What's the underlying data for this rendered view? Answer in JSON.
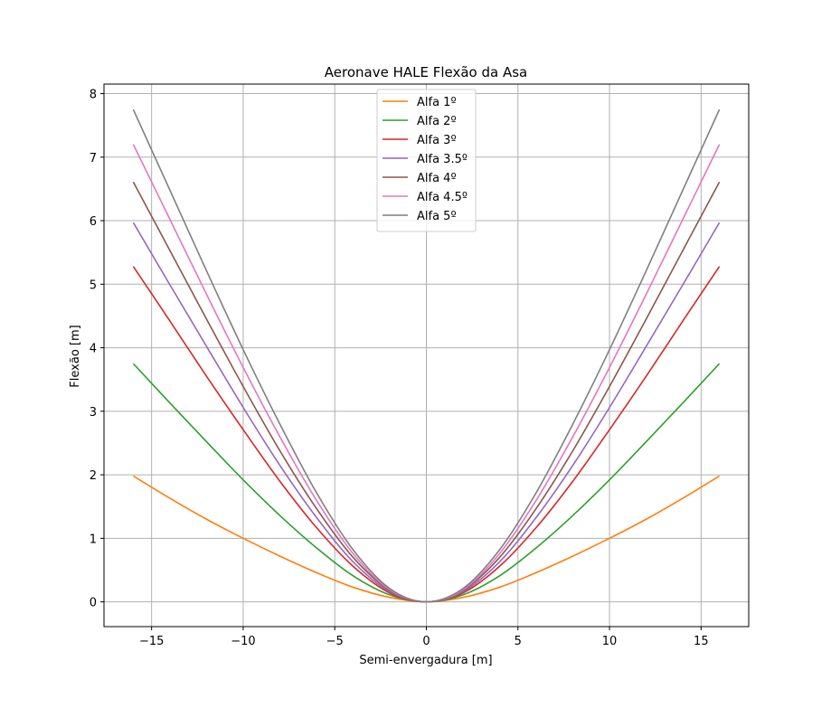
{
  "chart_data": {
    "type": "line",
    "title": "Aeronave HALE Flexão da Asa",
    "xlabel": "Semi-envergadura [m]",
    "ylabel": "Flexão [m]",
    "xlim": [
      -17.6,
      17.6
    ],
    "ylim": [
      -0.39,
      8.15
    ],
    "xticks": [
      -15,
      -10,
      -5,
      0,
      5,
      10,
      15
    ],
    "xtick_labels": [
      "−15",
      "−10",
      "−5",
      "0",
      "5",
      "10",
      "15"
    ],
    "yticks": [
      0,
      1,
      2,
      3,
      4,
      5,
      6,
      7,
      8
    ],
    "ytick_labels": [
      "0",
      "1",
      "2",
      "3",
      "4",
      "5",
      "6",
      "7",
      "8"
    ],
    "grid": true,
    "legend_position": "top-center",
    "x": [
      -16,
      -14,
      -12,
      -10,
      -8,
      -6,
      -4,
      -2,
      0,
      2,
      4,
      6,
      8,
      10,
      12,
      14,
      16
    ],
    "series": [
      {
        "name": "Alfa 1º",
        "color": "#ff7f0e",
        "values": [
          1.98,
          1.63,
          1.3,
          1.0,
          0.72,
          0.46,
          0.23,
          0.07,
          0,
          0.07,
          0.23,
          0.46,
          0.72,
          1.0,
          1.3,
          1.63,
          1.98
        ]
      },
      {
        "name": "Alfa 2º",
        "color": "#2ca02c",
        "values": [
          3.75,
          3.13,
          2.52,
          1.92,
          1.36,
          0.85,
          0.41,
          0.11,
          0,
          0.11,
          0.41,
          0.85,
          1.36,
          1.92,
          2.52,
          3.13,
          3.75
        ]
      },
      {
        "name": "Alfa 3º",
        "color": "#d62728",
        "values": [
          5.28,
          4.42,
          3.55,
          2.71,
          1.9,
          1.17,
          0.56,
          0.14,
          0,
          0.14,
          0.56,
          1.17,
          1.9,
          2.71,
          3.55,
          4.42,
          5.28
        ]
      },
      {
        "name": "Alfa 3.5º",
        "color": "#9467bd",
        "values": [
          5.97,
          4.99,
          4.02,
          3.06,
          2.15,
          1.33,
          0.63,
          0.16,
          0,
          0.16,
          0.63,
          1.33,
          2.15,
          3.06,
          4.02,
          4.99,
          5.97
        ]
      },
      {
        "name": "Alfa 4º",
        "color": "#8c564b",
        "values": [
          6.61,
          5.53,
          4.45,
          3.39,
          2.38,
          1.47,
          0.7,
          0.18,
          0,
          0.18,
          0.7,
          1.47,
          2.38,
          3.39,
          4.45,
          5.53,
          6.61
        ]
      },
      {
        "name": "Alfa 4.5º",
        "color": "#e377c2",
        "values": [
          7.2,
          6.02,
          4.84,
          3.69,
          2.6,
          1.6,
          0.76,
          0.19,
          0,
          0.19,
          0.76,
          1.6,
          2.6,
          3.69,
          4.84,
          6.02,
          7.2
        ]
      },
      {
        "name": "Alfa 5º",
        "color": "#7f7f7f",
        "values": [
          7.75,
          6.48,
          5.21,
          3.97,
          2.8,
          1.72,
          0.82,
          0.21,
          0,
          0.21,
          0.82,
          1.72,
          2.8,
          3.97,
          5.21,
          6.48,
          7.75
        ]
      }
    ]
  }
}
